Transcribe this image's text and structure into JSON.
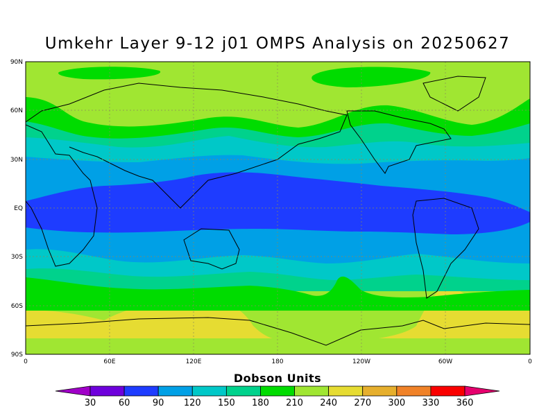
{
  "map": {
    "title": "Umkehr Layer 9-12 j01 OMPS Analysis on 20250627",
    "lat_labels": [
      "90N",
      "60N",
      "30N",
      "EQ",
      "30S",
      "60S",
      "90S"
    ],
    "lon_labels": [
      "0",
      "60E",
      "120E",
      "180",
      "120W",
      "60W",
      "0"
    ],
    "colorbar": {
      "title": "Dobson Units",
      "levels": [
        "30",
        "60",
        "90",
        "120",
        "150",
        "180",
        "210",
        "240",
        "270",
        "300",
        "330",
        "360"
      ],
      "colors": [
        "#a000c8",
        "#6e00dc",
        "#1e3cff",
        "#00a0e6",
        "#00c8c8",
        "#00d28c",
        "#00dc00",
        "#a0e632",
        "#e6dc32",
        "#e6af2d",
        "#f08228",
        "#fa0000",
        "#e6006e"
      ]
    }
  }
}
